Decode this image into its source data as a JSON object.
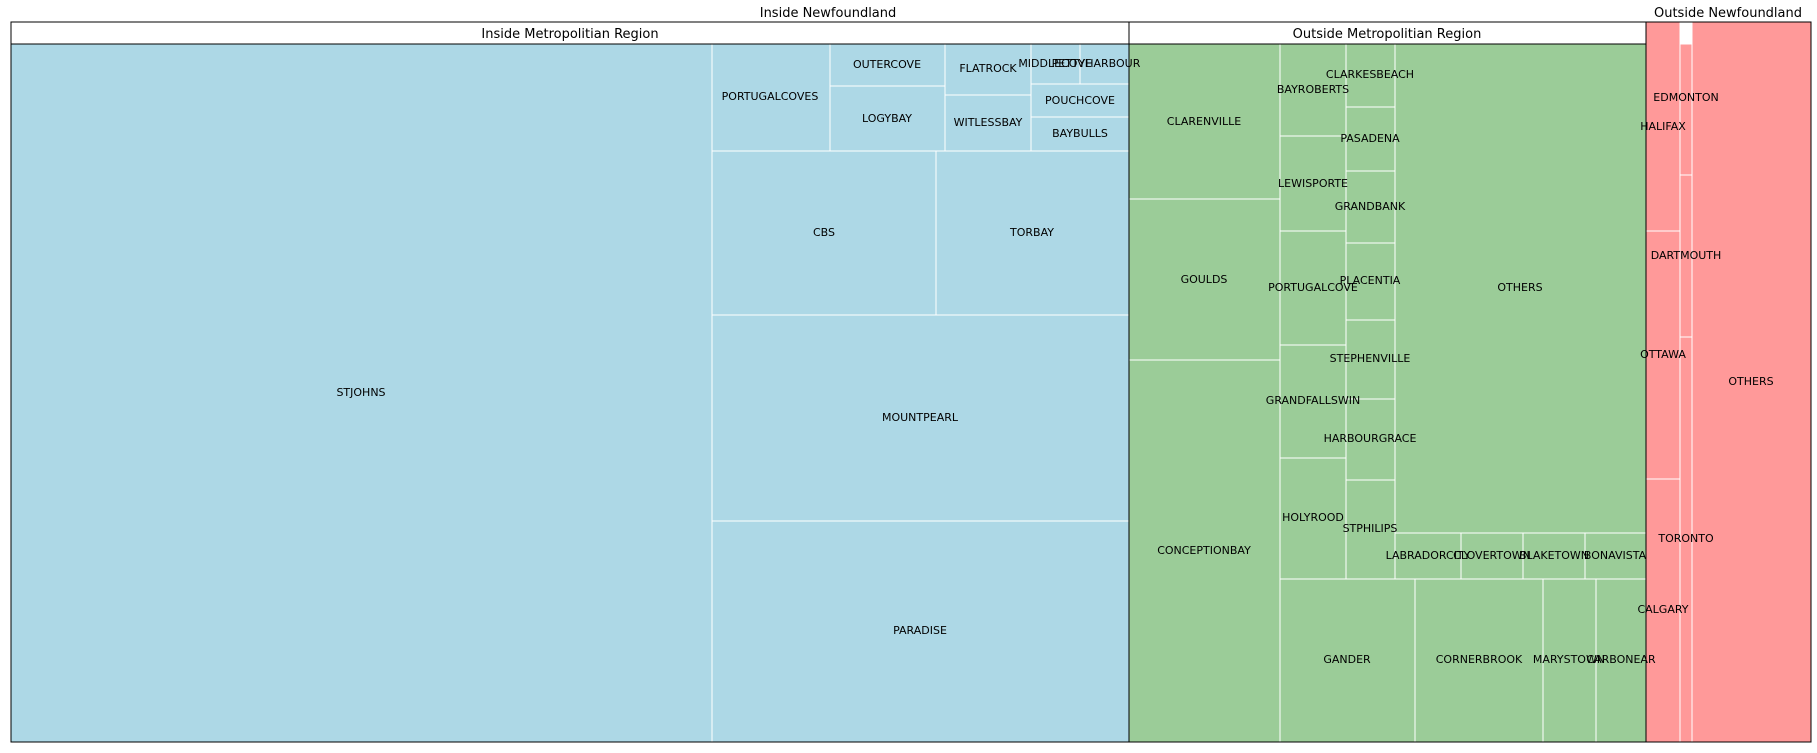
{
  "chart_data": {
    "type": "treemap",
    "colors": {
      "inside": "#add8e6",
      "outside_region": "#9bcc98",
      "outside_nl": "#ff9999"
    },
    "groups": [
      {
        "title": "Inside Newfoundland",
        "subgroups": [
          {
            "title": "Inside Metropolitian Region",
            "color": "#add8e6",
            "items": [
              {
                "label": "STJOHNS",
                "value": 1821
              },
              {
                "label": "PARADISE",
                "value": 206
              },
              {
                "label": "MOUNTPEARL",
                "value": 192
              },
              {
                "label": "CBS",
                "value": 85
              },
              {
                "label": "TORBAY",
                "value": 73
              },
              {
                "label": "PORTUGALCOVES",
                "value": 29
              },
              {
                "label": "LOGYBAY",
                "value": 18
              },
              {
                "label": "OUTERCOVE",
                "value": 13
              },
              {
                "label": "FLATROCK",
                "value": 13
              },
              {
                "label": "WITLESSBAY",
                "value": 13
              },
              {
                "label": "POUCHCOVE",
                "value": 8
              },
              {
                "label": "BAYBULLS",
                "value": 8
              },
              {
                "label": "MIDDLECOVE",
                "value": 5
              },
              {
                "label": "PETTYHARBOUR",
                "value": 4
              }
            ]
          },
          {
            "title": "Outside Metropolitian Region",
            "color": "#9bcc98",
            "items": [
              {
                "label": "CONCEPTIONBAY",
                "value": 170
              },
              {
                "label": "GOULDS",
                "value": 72
              },
              {
                "label": "CLARENVILLE",
                "value": 69
              },
              {
                "label": "GANDER",
                "value": 54
              },
              {
                "label": "CORNERBROOK",
                "value": 51
              },
              {
                "label": "MARYSTOWN",
                "value": 21
              },
              {
                "label": "CARBONEAR",
                "value": 18
              },
              {
                "label": "PORTUGALCOVE",
                "value": 23
              },
              {
                "label": "LEWISPORTE",
                "value": 19
              },
              {
                "label": "BAYROBERTS",
                "value": 19
              },
              {
                "label": "GRANDFALLSWIN",
                "value": 23
              },
              {
                "label": "HOLYROOD",
                "value": 24
              },
              {
                "label": "CLARKESBEACH",
                "value": 9
              },
              {
                "label": "PASADENA",
                "value": 10
              },
              {
                "label": "GRANDBANK",
                "value": 12
              },
              {
                "label": "PLACENTIA",
                "value": 13
              },
              {
                "label": "STEPHENVILLE",
                "value": 13
              },
              {
                "label": "HARBOURGRACE",
                "value": 13
              },
              {
                "label": "STPHILIPS",
                "value": 16
              },
              {
                "label": "LABRADORCITY",
                "value": 9
              },
              {
                "label": "CLOVERTOWN",
                "value": 9
              },
              {
                "label": "BLAKETOWN",
                "value": 9
              },
              {
                "label": "BONAVISTA",
                "value": 9
              },
              {
                "label": "OTHERS",
                "value": 212
              }
            ]
          }
        ]
      },
      {
        "title": "Outside Newfoundland",
        "subgroups": [
          {
            "title": "",
            "color": "#ff9999",
            "items": [
              {
                "label": "EDMONTON",
                "value": 12
              },
              {
                "label": "HALIFAX",
                "value": 11
              },
              {
                "label": "DARTMOUTH",
                "value": 14
              },
              {
                "label": "OTTAWA",
                "value": 12
              },
              {
                "label": "TORONTO",
                "value": 15
              },
              {
                "label": "CALGARY",
                "value": 11
              },
              {
                "label": "OTHERS",
                "value": 140
              }
            ]
          }
        ]
      }
    ]
  }
}
